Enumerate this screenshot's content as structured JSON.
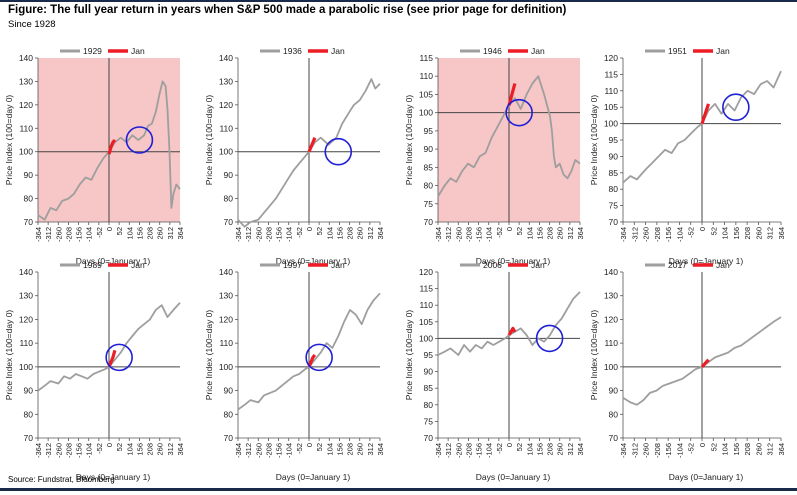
{
  "figure": {
    "title": "Figure: The full year return in years when S&P 500 made a parabolic rise (see prior page for definition)",
    "subtitle": "Since 1928",
    "source": "Source: Fundstrat, Bloomberg"
  },
  "colors": {
    "year_line": "#9e9e9e",
    "jan_line": "#ee1c25",
    "circle": "#1f1fd6",
    "shading": "#f7c6c6",
    "axis": "#555555",
    "rule": "#1a2a4a"
  },
  "chart_data": [
    {
      "type": "line",
      "legend": [
        "1929",
        "Jan"
      ],
      "shaded": true,
      "ylim": [
        70,
        140
      ],
      "yticks": [
        70,
        80,
        90,
        100,
        110,
        120,
        130,
        140
      ],
      "xlim": [
        -364,
        364
      ],
      "xticks": [
        "-364",
        "-312",
        "-260",
        "-208",
        "-156",
        "-104",
        "-52",
        "0",
        "52",
        "104",
        "156",
        "208",
        "260",
        "312",
        "364"
      ],
      "ylabel": "Price Index (100=day 0)",
      "xlabel": "Days (0=January 1)",
      "series": [
        {
          "name": "1929",
          "x": [
            -364,
            -330,
            -300,
            -270,
            -240,
            -208,
            -180,
            -150,
            -120,
            -90,
            -60,
            -30,
            -10,
            0,
            30,
            60,
            90,
            120,
            150,
            180,
            200,
            220,
            240,
            260,
            275,
            290,
            300,
            310,
            320,
            330,
            345,
            364
          ],
          "y": [
            73,
            71,
            76,
            75,
            79,
            80,
            82,
            86,
            89,
            88,
            93,
            97,
            99,
            100,
            104,
            106,
            104,
            107,
            105,
            107,
            111,
            112,
            117,
            125,
            130,
            128,
            118,
            100,
            76,
            82,
            86,
            84
          ]
        },
        {
          "name": "Jan",
          "x": [
            0,
            10,
            20,
            30
          ],
          "y": [
            99,
            102,
            104,
            105
          ]
        }
      ],
      "circle": {
        "x": 156,
        "y": 105
      }
    },
    {
      "type": "line",
      "legend": [
        "1936",
        "Jan"
      ],
      "shaded": false,
      "ylim": [
        70,
        140
      ],
      "yticks": [
        70,
        80,
        90,
        100,
        110,
        120,
        130,
        140
      ],
      "xlim": [
        -364,
        364
      ],
      "xticks": [
        "-364",
        "-312",
        "-260",
        "-208",
        "-156",
        "-104",
        "-52",
        "0",
        "52",
        "104",
        "156",
        "208",
        "260",
        "312",
        "364"
      ],
      "ylabel": "Price Index (100=day 0)",
      "xlabel": "Days (0=January 1)",
      "series": [
        {
          "name": "1936",
          "x": [
            -364,
            -330,
            -300,
            -260,
            -230,
            -200,
            -170,
            -140,
            -110,
            -80,
            -50,
            -20,
            0,
            30,
            60,
            100,
            140,
            170,
            200,
            230,
            260,
            290,
            320,
            340,
            364
          ],
          "y": [
            71,
            68,
            70,
            71,
            74,
            77,
            80,
            84,
            88,
            92,
            95,
            98,
            100,
            104,
            106,
            103,
            106,
            112,
            116,
            120,
            122,
            126,
            131,
            127,
            129
          ]
        },
        {
          "name": "Jan",
          "x": [
            0,
            10,
            20,
            30
          ],
          "y": [
            100,
            102,
            104,
            106
          ]
        }
      ],
      "circle": {
        "x": 150,
        "y": 100
      }
    },
    {
      "type": "line",
      "legend": [
        "1946",
        "Jan"
      ],
      "shaded": true,
      "ylim": [
        70,
        115
      ],
      "yticks": [
        70,
        75,
        80,
        85,
        90,
        95,
        100,
        105,
        110,
        115
      ],
      "xlim": [
        -364,
        364
      ],
      "xticks": [
        "-364",
        "-312",
        "-260",
        "-208",
        "-156",
        "-104",
        "-52",
        "0",
        "52",
        "104",
        "156",
        "208",
        "260",
        "312",
        "364"
      ],
      "ylabel": "Price Index (100=day 0)",
      "xlabel": "Days (0=January 1)",
      "series": [
        {
          "name": "1946",
          "x": [
            -364,
            -330,
            -300,
            -270,
            -240,
            -210,
            -180,
            -150,
            -120,
            -90,
            -60,
            -30,
            0,
            30,
            60,
            90,
            120,
            150,
            180,
            210,
            220,
            230,
            240,
            260,
            280,
            300,
            320,
            340,
            364
          ],
          "y": [
            77,
            80,
            82,
            81,
            84,
            86,
            85,
            88,
            89,
            93,
            96,
            99,
            102,
            104,
            101,
            105,
            108,
            110,
            105,
            99,
            95,
            88,
            85,
            86,
            83,
            82,
            84,
            87,
            86
          ]
        },
        {
          "name": "Jan",
          "x": [
            0,
            10,
            20,
            30
          ],
          "y": [
            102,
            104,
            106,
            108
          ]
        }
      ],
      "circle": {
        "x": 52,
        "y": 100
      }
    },
    {
      "type": "line",
      "legend": [
        "1951",
        "Jan"
      ],
      "shaded": false,
      "ylim": [
        70,
        120
      ],
      "yticks": [
        70,
        75,
        80,
        85,
        90,
        95,
        100,
        105,
        110,
        115,
        120
      ],
      "xlim": [
        -364,
        364
      ],
      "xticks": [
        "-364",
        "-312",
        "-260",
        "-208",
        "-156",
        "-104",
        "-52",
        "0",
        "52",
        "104",
        "156",
        "208",
        "260",
        "312",
        "364"
      ],
      "ylabel": "Price Index (100=day 0)",
      "xlabel": "Days (0=January 1)",
      "series": [
        {
          "name": "1951",
          "x": [
            -364,
            -330,
            -300,
            -260,
            -230,
            -200,
            -170,
            -140,
            -110,
            -80,
            -50,
            -20,
            0,
            30,
            60,
            90,
            120,
            150,
            180,
            210,
            240,
            270,
            300,
            330,
            364
          ],
          "y": [
            82,
            84,
            83,
            86,
            88,
            90,
            92,
            91,
            94,
            95,
            97,
            99,
            100,
            104,
            106,
            103,
            106,
            104,
            108,
            110,
            109,
            112,
            113,
            111,
            116
          ]
        },
        {
          "name": "Jan",
          "x": [
            0,
            10,
            20,
            30
          ],
          "y": [
            100,
            102,
            104,
            106
          ]
        }
      ],
      "circle": {
        "x": 156,
        "y": 105
      }
    },
    {
      "type": "line",
      "legend": [
        "1989",
        "Jan"
      ],
      "shaded": false,
      "ylim": [
        70,
        140
      ],
      "yticks": [
        70,
        80,
        90,
        100,
        110,
        120,
        130,
        140
      ],
      "xlim": [
        -364,
        364
      ],
      "xticks": [
        "-364",
        "-312",
        "-260",
        "-208",
        "-156",
        "-104",
        "-52",
        "0",
        "52",
        "104",
        "156",
        "208",
        "260",
        "312",
        "364"
      ],
      "ylabel": "Price Index (100=day 0)",
      "xlabel": "Days (0=January 1)",
      "series": [
        {
          "name": "1989",
          "x": [
            -364,
            -330,
            -300,
            -260,
            -230,
            -200,
            -170,
            -140,
            -110,
            -80,
            -50,
            -20,
            0,
            30,
            60,
            90,
            120,
            150,
            180,
            210,
            240,
            270,
            300,
            330,
            364
          ],
          "y": [
            90,
            92,
            94,
            93,
            96,
            95,
            97,
            96,
            95,
            97,
            98,
            99,
            100,
            103,
            106,
            110,
            113,
            116,
            118,
            120,
            124,
            126,
            121,
            124,
            127
          ]
        },
        {
          "name": "Jan",
          "x": [
            0,
            10,
            20,
            30
          ],
          "y": [
            100,
            102,
            104,
            107
          ]
        }
      ],
      "circle": {
        "x": 52,
        "y": 104
      }
    },
    {
      "type": "line",
      "legend": [
        "1997",
        "Jan"
      ],
      "shaded": false,
      "ylim": [
        70,
        140
      ],
      "yticks": [
        70,
        80,
        90,
        100,
        110,
        120,
        130,
        140
      ],
      "xlim": [
        -364,
        364
      ],
      "xticks": [
        "-364",
        "-312",
        "-260",
        "-208",
        "-156",
        "-104",
        "-52",
        "0",
        "52",
        "104",
        "156",
        "208",
        "260",
        "312",
        "364"
      ],
      "ylabel": "Price Index (100=day 0)",
      "xlabel": "Days (0=January 1)",
      "series": [
        {
          "name": "1997",
          "x": [
            -364,
            -330,
            -300,
            -260,
            -230,
            -200,
            -170,
            -140,
            -110,
            -80,
            -50,
            -20,
            0,
            30,
            60,
            90,
            120,
            150,
            180,
            210,
            240,
            270,
            300,
            330,
            364
          ],
          "y": [
            82,
            84,
            86,
            85,
            88,
            89,
            90,
            92,
            94,
            96,
            97,
            99,
            100,
            103,
            106,
            110,
            108,
            113,
            119,
            124,
            122,
            118,
            124,
            128,
            131
          ]
        },
        {
          "name": "Jan",
          "x": [
            0,
            10,
            20,
            30
          ],
          "y": [
            100,
            102,
            104,
            105
          ]
        }
      ],
      "circle": {
        "x": 52,
        "y": 104
      }
    },
    {
      "type": "line",
      "legend": [
        "2006",
        "Jan"
      ],
      "shaded": false,
      "ylim": [
        70,
        120
      ],
      "yticks": [
        70,
        75,
        80,
        85,
        90,
        95,
        100,
        105,
        110,
        115,
        120
      ],
      "xlim": [
        -364,
        364
      ],
      "xticks": [
        "-364",
        "-312",
        "-260",
        "-208",
        "-156",
        "-104",
        "-52",
        "0",
        "52",
        "104",
        "156",
        "208",
        "260",
        "312",
        "364"
      ],
      "ylabel": "Price Index (100=day 0)",
      "xlabel": "Days (0=January 1)",
      "series": [
        {
          "name": "2006",
          "x": [
            -364,
            -330,
            -300,
            -260,
            -230,
            -200,
            -170,
            -140,
            -110,
            -80,
            -50,
            -20,
            0,
            30,
            60,
            90,
            120,
            150,
            180,
            210,
            240,
            270,
            300,
            330,
            364
          ],
          "y": [
            95,
            96,
            97,
            95,
            98,
            96,
            98,
            97,
            99,
            98,
            99,
            100,
            101,
            102,
            103,
            101,
            98,
            100,
            99,
            101,
            104,
            106,
            109,
            112,
            114
          ]
        },
        {
          "name": "Jan",
          "x": [
            0,
            10,
            20,
            30
          ],
          "y": [
            101,
            102,
            103,
            102
          ]
        }
      ],
      "circle": {
        "x": 208,
        "y": 100
      }
    },
    {
      "type": "line",
      "legend": [
        "2017",
        "Jan"
      ],
      "shaded": false,
      "ylim": [
        70,
        140
      ],
      "yticks": [
        70,
        80,
        90,
        100,
        110,
        120,
        130,
        140
      ],
      "xlim": [
        -364,
        364
      ],
      "xticks": [
        "-364",
        "-312",
        "-260",
        "-208",
        "-156",
        "-104",
        "-52",
        "0",
        "52",
        "104",
        "156",
        "208",
        "260",
        "312",
        "364"
      ],
      "ylabel": "Price Index (100=day 0)",
      "xlabel": "Days (0=January 1)",
      "series": [
        {
          "name": "2017",
          "x": [
            -364,
            -330,
            -300,
            -270,
            -240,
            -210,
            -180,
            -150,
            -120,
            -90,
            -60,
            -30,
            0,
            30,
            60,
            90,
            120,
            150,
            180,
            210,
            240,
            270,
            300,
            330,
            364
          ],
          "y": [
            87,
            85,
            84,
            86,
            89,
            90,
            92,
            93,
            94,
            95,
            97,
            99,
            100,
            102,
            104,
            105,
            106,
            108,
            109,
            111,
            113,
            115,
            117,
            119,
            121
          ]
        },
        {
          "name": "Jan",
          "x": [
            0,
            10,
            20,
            30
          ],
          "y": [
            100,
            101,
            102,
            103
          ]
        }
      ],
      "circle": null
    }
  ]
}
